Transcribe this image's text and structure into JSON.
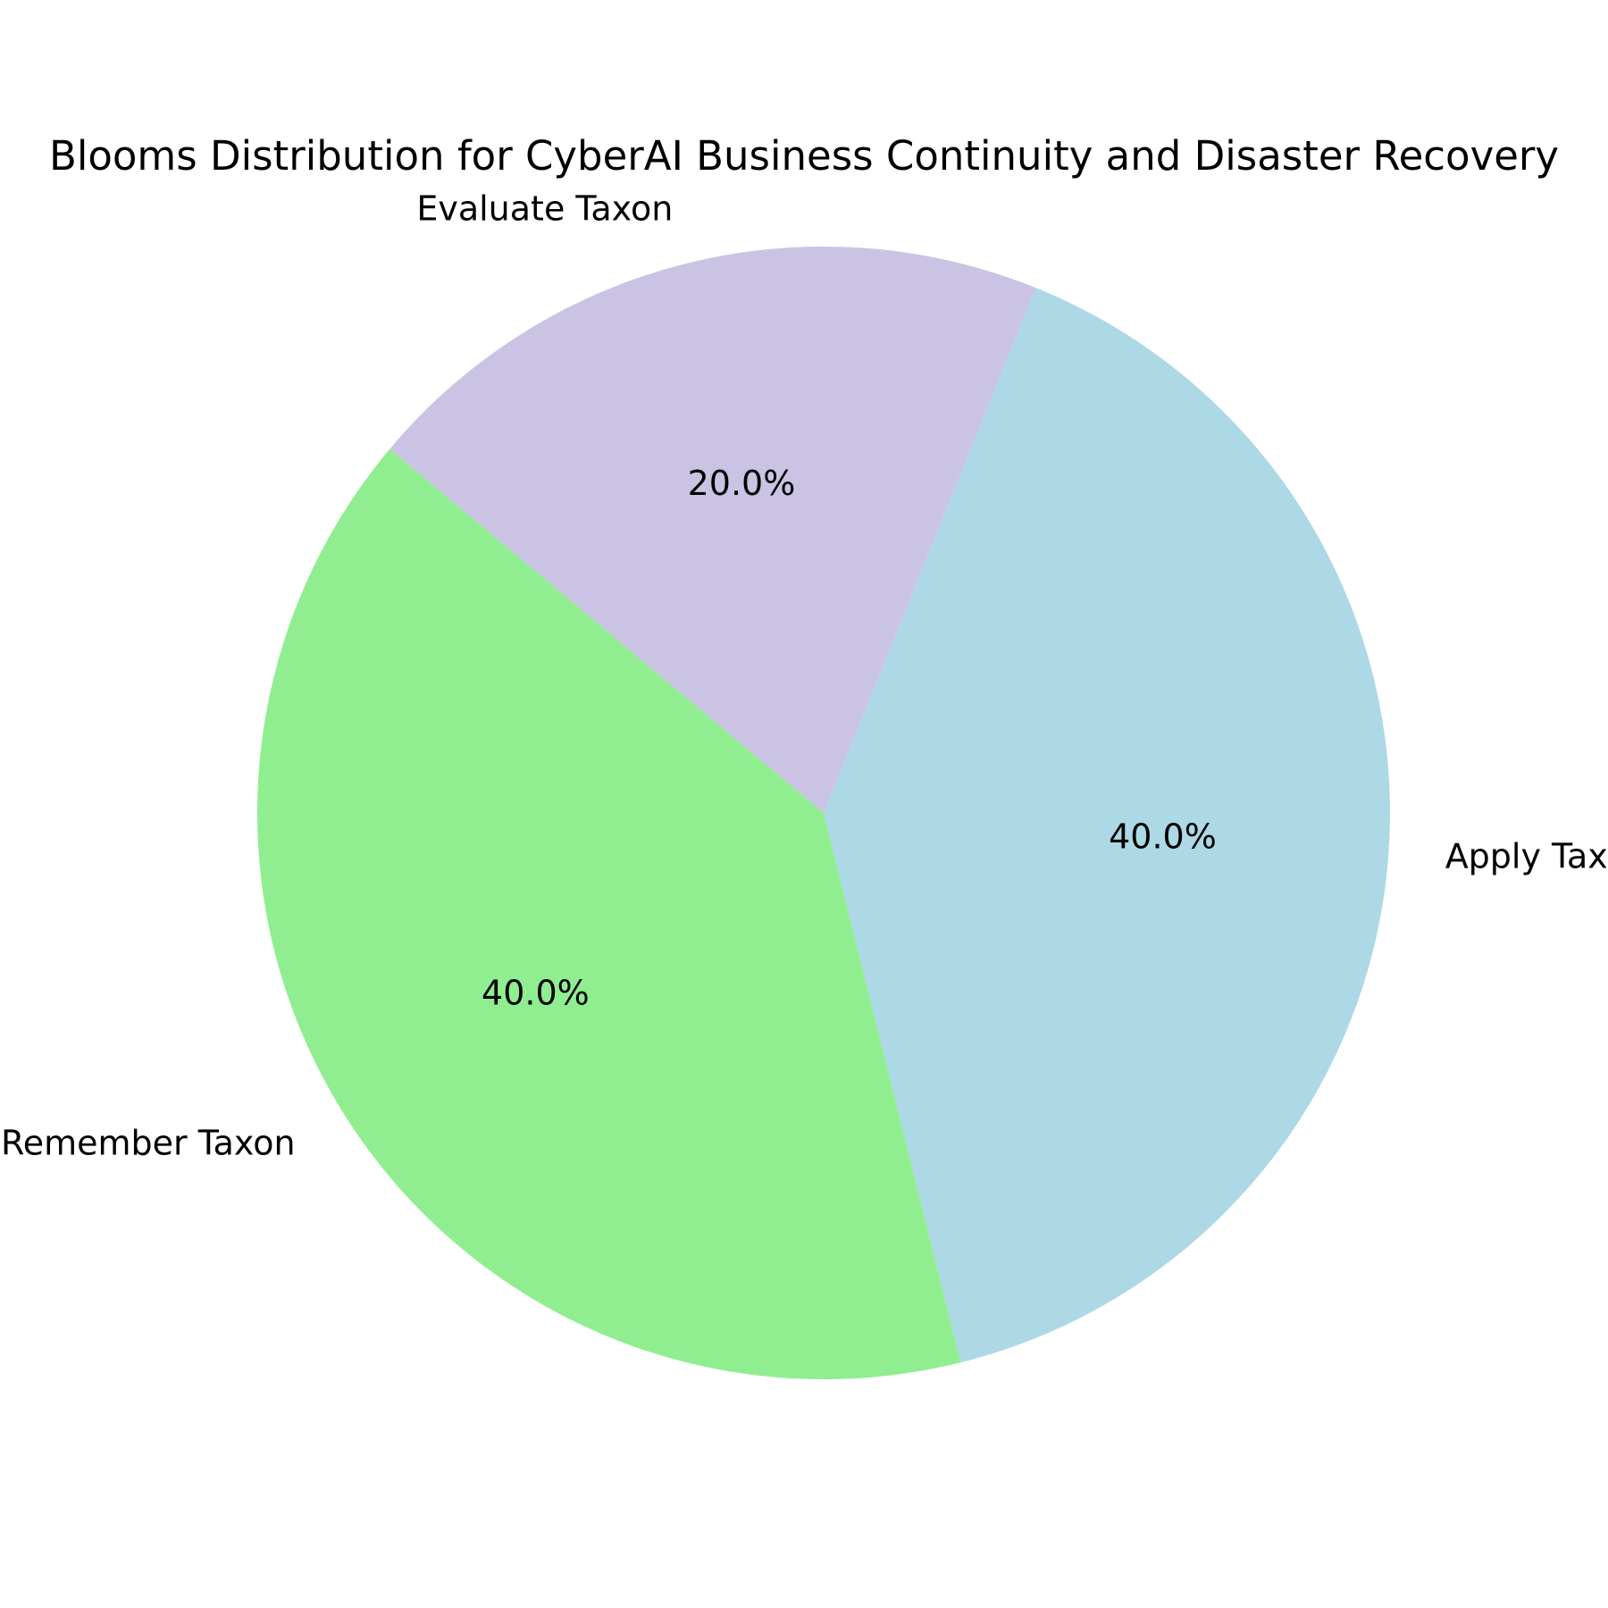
{
  "chart_data": {
    "type": "pie",
    "title": "Blooms Distribution for CyberAI Business Continuity and Disaster Recovery",
    "slices": [
      {
        "label": "Apply Taxon",
        "value": 40.0,
        "pct_label": "40.0%",
        "color": "#add8e6"
      },
      {
        "label": "Remember Taxon",
        "value": 40.0,
        "pct_label": "40.0%",
        "color": "#90ee90"
      },
      {
        "label": "Evaluate Taxon",
        "value": 20.0,
        "pct_label": "20.0%",
        "color": "#cbc3e3"
      }
    ],
    "start_angle_deg": 68,
    "direction": "clockwise",
    "legend": "none"
  }
}
